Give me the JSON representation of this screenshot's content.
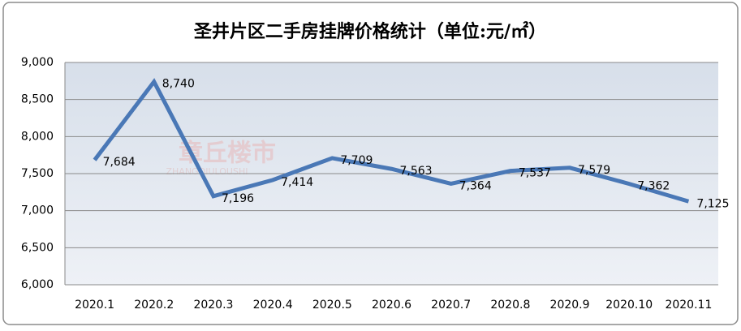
{
  "chart_data": {
    "type": "line",
    "title": "圣井片区二手房挂牌价格统计（单位:元/㎡）",
    "categories": [
      "2020.1",
      "2020.2",
      "2020.3",
      "2020.4",
      "2020.5",
      "2020.6",
      "2020.7",
      "2020.8",
      "2020.9",
      "2020.10",
      "2020.11"
    ],
    "series": [
      {
        "color": "#4a78b6",
        "values": [
          7684,
          8740,
          7196,
          7414,
          7709,
          7563,
          7364,
          7537,
          7579,
          7362,
          7125
        ],
        "value_labels": [
          "7,684",
          "8,740",
          "7,196",
          "7,414",
          "7,709",
          "7,563",
          "7,364",
          "7,537",
          "7,579",
          "7,362",
          "7,125"
        ]
      }
    ],
    "ylim": [
      6000,
      9000
    ],
    "yticks": [
      {
        "value": 6000,
        "label": "6,000"
      },
      {
        "value": 6500,
        "label": "6,500"
      },
      {
        "value": 7000,
        "label": "7,000"
      },
      {
        "value": 7500,
        "label": "7,500"
      },
      {
        "value": 8000,
        "label": "8,000"
      },
      {
        "value": 8500,
        "label": "8,500"
      },
      {
        "value": 9000,
        "label": "9,000"
      }
    ],
    "grid": true,
    "watermark": {
      "text": "章丘楼市",
      "subtext": "ZHANGQIULOUSHI"
    }
  }
}
